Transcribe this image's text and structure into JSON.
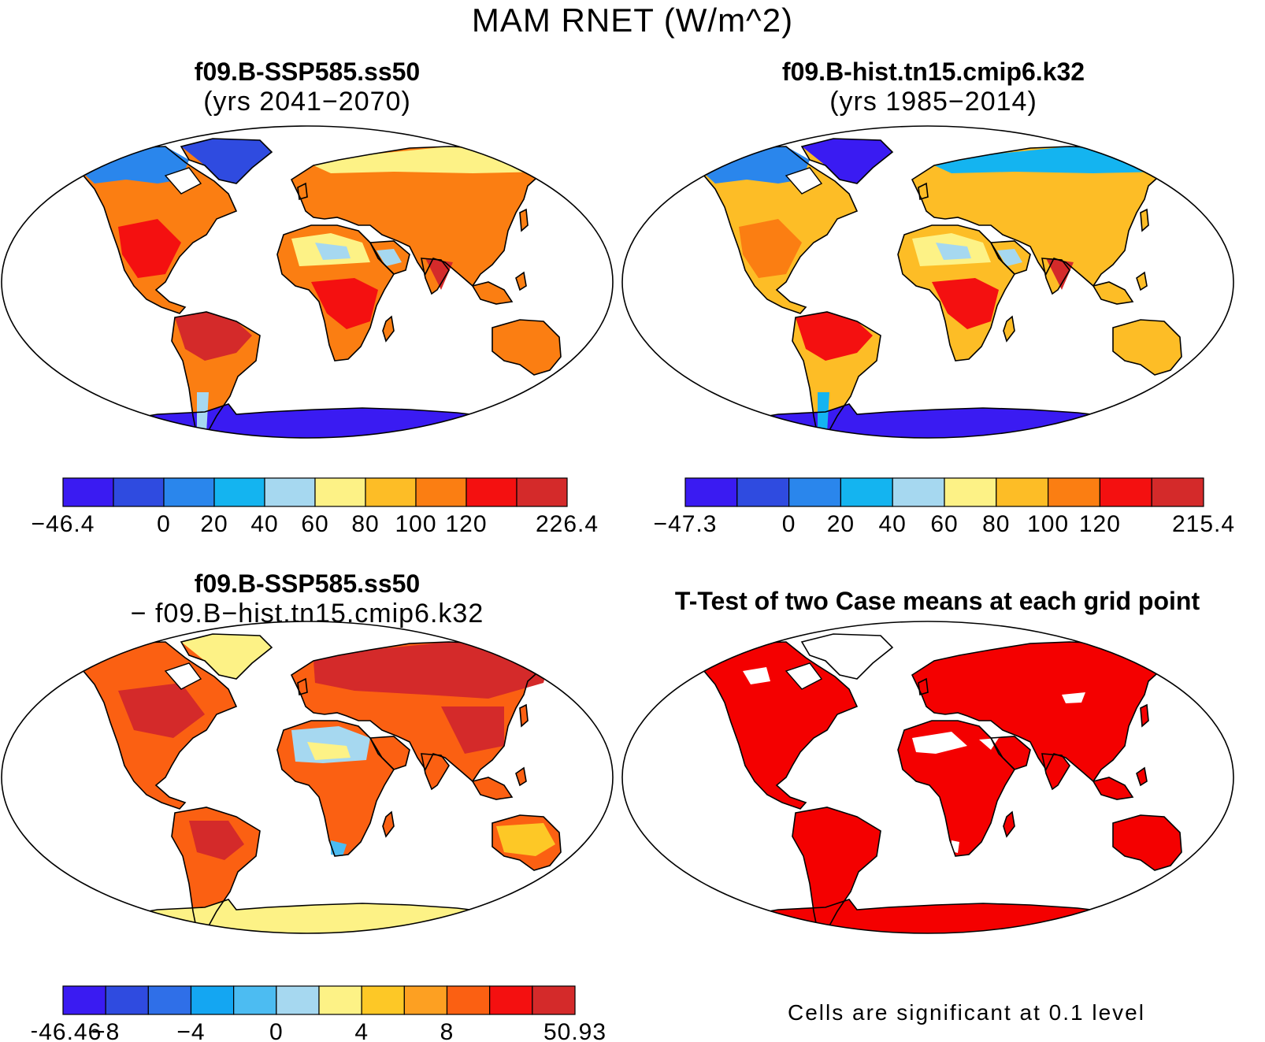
{
  "title": "MAM RNET (W/m^2)",
  "panels": [
    {
      "id": "case1",
      "title_line1": "f09.B-SSP585.ss50",
      "title_line2": "(yrs 2041−2070)",
      "colorbar": {
        "colors": [
          "#3a1bf2",
          "#2f4be0",
          "#2a86ec",
          "#14b4f0",
          "#a6d8f0",
          "#fdf286",
          "#fdbd26",
          "#fb7e12",
          "#f41010",
          "#d42a2a"
        ],
        "labels": [
          "−46.4",
          "",
          "0",
          "20",
          "40",
          "60",
          "80",
          "100",
          "120",
          "",
          "226.4"
        ]
      }
    },
    {
      "id": "case2",
      "title_line1": "f09.B-hist.tn15.cmip6.k32",
      "title_line2": "(yrs 1985−2014)",
      "colorbar": {
        "colors": [
          "#3a1bf2",
          "#2f4be0",
          "#2a86ec",
          "#14b4f0",
          "#a6d8f0",
          "#fdf286",
          "#fdbd26",
          "#fb7e12",
          "#f41010",
          "#d42a2a"
        ],
        "labels": [
          "−47.3",
          "",
          "0",
          "20",
          "40",
          "60",
          "80",
          "100",
          "120",
          "",
          "215.4"
        ]
      }
    },
    {
      "id": "diff",
      "title_line1": "f09.B-SSP585.ss50",
      "title_line2": "− f09.B−hist.tn15.cmip6.k32",
      "colorbar": {
        "colors": [
          "#3a1bf2",
          "#2f4be0",
          "#2f6fe8",
          "#14a6f2",
          "#4cbcf2",
          "#a6d8f0",
          "#fdf286",
          "#fdc826",
          "#fda022",
          "#fb6012",
          "#f41010",
          "#d42a2a"
        ],
        "labels": [
          "−46.46",
          "−8",
          "",
          "−4",
          "",
          "0",
          "",
          "4",
          "",
          "8",
          "",
          "",
          "50.93"
        ]
      }
    },
    {
      "id": "ttest",
      "title_line1": "T-Test of two Case means at each grid point",
      "note": "Cells are significant at 0.1 level"
    }
  ]
}
